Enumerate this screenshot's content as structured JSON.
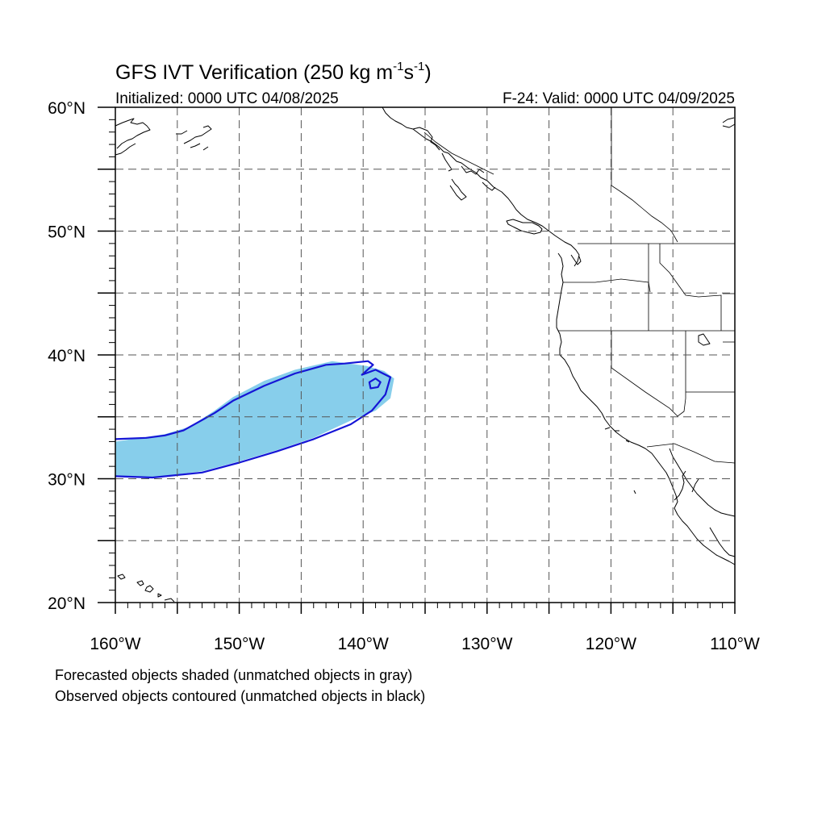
{
  "title": {
    "main": "GFS IVT Verification (250 kg m",
    "sup1": "-1",
    "mid": "s",
    "sup2": "-1",
    "close": ")"
  },
  "initialized": "Initialized: 0000 UTC 04/08/2025",
  "valid": "F-24: Valid: 0000 UTC 04/09/2025",
  "map": {
    "lon_range": [
      -160,
      -110
    ],
    "lat_range": [
      20,
      60
    ],
    "grid_lon_step": 5,
    "grid_lat_step": 5,
    "projection": "cylindrical equidistant",
    "lat_labels": [
      "20°N",
      "30°N",
      "40°N",
      "50°N",
      "60°N"
    ],
    "lon_labels": [
      "160°W",
      "150°W",
      "140°W",
      "130°W",
      "120°W",
      "110°W"
    ],
    "forecast_fill_color": "#87CEEB",
    "observed_contour_color": "#1515D6",
    "forecast_object": {
      "type": "matched forecast IVT object",
      "outline_lonlat": [
        [
          -160,
          30.2
        ],
        [
          -157,
          30.1
        ],
        [
          -153,
          30.6
        ],
        [
          -150,
          31.4
        ],
        [
          -147,
          32.3
        ],
        [
          -144,
          33.3
        ],
        [
          -141,
          34.7
        ],
        [
          -139,
          35.5
        ],
        [
          -137.8,
          36.5
        ],
        [
          -137.5,
          38.1
        ],
        [
          -138.3,
          38.7
        ],
        [
          -139.7,
          39.1
        ],
        [
          -142.5,
          39.5
        ],
        [
          -145.5,
          38.8
        ],
        [
          -148,
          37.9
        ],
        [
          -150.5,
          36.6
        ],
        [
          -152,
          35.5
        ],
        [
          -154,
          34.2
        ],
        [
          -156,
          33.6
        ],
        [
          -160,
          33.0
        ]
      ]
    },
    "observed_object": {
      "type": "matched observed IVT object",
      "outline_lonlat": [
        [
          -160,
          30.2
        ],
        [
          -157,
          30.1
        ],
        [
          -153,
          30.5
        ],
        [
          -150,
          31.3
        ],
        [
          -147,
          32.2
        ],
        [
          -144,
          33.2
        ],
        [
          -141,
          34.4
        ],
        [
          -139.3,
          35.5
        ],
        [
          -138.2,
          36.8
        ],
        [
          -137.8,
          38.2
        ],
        [
          -139.0,
          38.8
        ],
        [
          -140.1,
          38.4
        ],
        [
          -139.2,
          39.2
        ],
        [
          -139.6,
          39.5
        ],
        [
          -141.5,
          39.3
        ],
        [
          -143,
          39.2
        ],
        [
          -145.5,
          38.5
        ],
        [
          -148,
          37.5
        ],
        [
          -150.5,
          36.3
        ],
        [
          -152,
          35.3
        ],
        [
          -154.5,
          33.9
        ],
        [
          -156,
          33.5
        ],
        [
          -157.5,
          33.3
        ],
        [
          -160,
          33.2
        ]
      ],
      "hole_lonlat": [
        [
          -139.4,
          37.3
        ],
        [
          -138.8,
          37.4
        ],
        [
          -138.6,
          37.8
        ],
        [
          -139.0,
          38.1
        ],
        [
          -139.5,
          37.8
        ]
      ]
    }
  },
  "footer": {
    "line1": "Forecasted objects shaded (unmatched objects in gray)",
    "line2": "Observed objects contoured (unmatched objects in black)"
  }
}
